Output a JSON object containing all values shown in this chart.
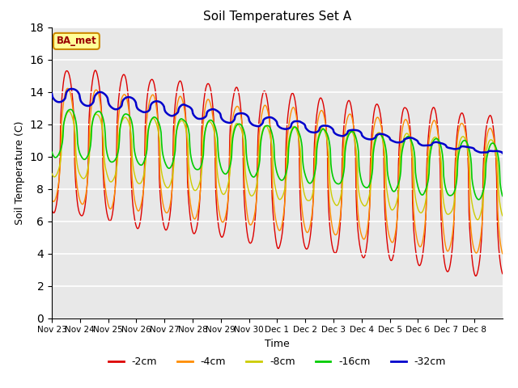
{
  "title": "Soil Temperatures Set A",
  "xlabel": "Time",
  "ylabel": "Soil Temperature (C)",
  "ylim": [
    0,
    18
  ],
  "yticks": [
    0,
    2,
    4,
    6,
    8,
    10,
    12,
    14,
    16,
    18
  ],
  "colors": {
    "-2cm": "#dd0000",
    "-4cm": "#ff8c00",
    "-8cm": "#cccc00",
    "-16cm": "#00cc00",
    "-32cm": "#0000cc"
  },
  "legend_labels": [
    "-2cm",
    "-4cm",
    "-8cm",
    "-16cm",
    "-32cm"
  ],
  "annotation_text": "BA_met",
  "annotation_bg": "#ffff99",
  "annotation_border": "#cc8800",
  "plot_bg": "#e8e8e8",
  "tick_labels": [
    "Nov 23",
    "Nov 24",
    "Nov 25",
    "Nov 26",
    "Nov 27",
    "Nov 28",
    "Nov 29",
    "Nov 30",
    "Dec 1",
    "Dec 2",
    "Dec 3",
    "Dec 4",
    "Dec 5",
    "Dec 6",
    "Dec 7",
    "Dec 8"
  ],
  "n_points_per_day": 48
}
